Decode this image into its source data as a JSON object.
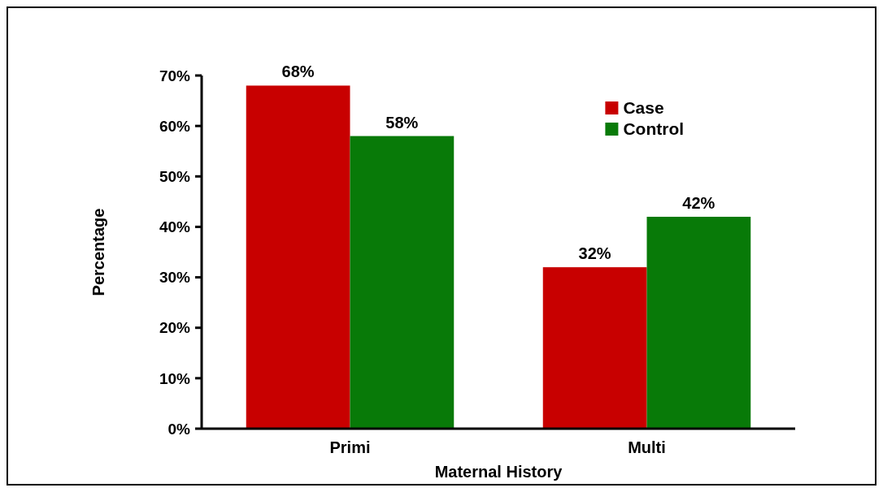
{
  "chart_data": {
    "type": "bar",
    "xlabel": "Maternal History",
    "ylabel": "Percentage",
    "categories": [
      "Primi",
      "Multi"
    ],
    "series": [
      {
        "name": "Case",
        "color": "#c80000",
        "values": [
          68,
          32
        ],
        "value_labels": [
          "68%",
          "32%"
        ]
      },
      {
        "name": "Control",
        "color": "#087a08",
        "values": [
          58,
          42
        ],
        "value_labels": [
          "58%",
          "42%"
        ]
      }
    ],
    "ylim": [
      0,
      70
    ],
    "yticks": [
      {
        "value": 0,
        "label": "0%"
      },
      {
        "value": 10,
        "label": "10%"
      },
      {
        "value": 20,
        "label": "20%"
      },
      {
        "value": 30,
        "label": "30%"
      },
      {
        "value": 40,
        "label": "40%"
      },
      {
        "value": 50,
        "label": "50%"
      },
      {
        "value": 60,
        "label": "60%"
      },
      {
        "value": 70,
        "label": "70%"
      }
    ],
    "grid": false,
    "legend": "top right"
  }
}
